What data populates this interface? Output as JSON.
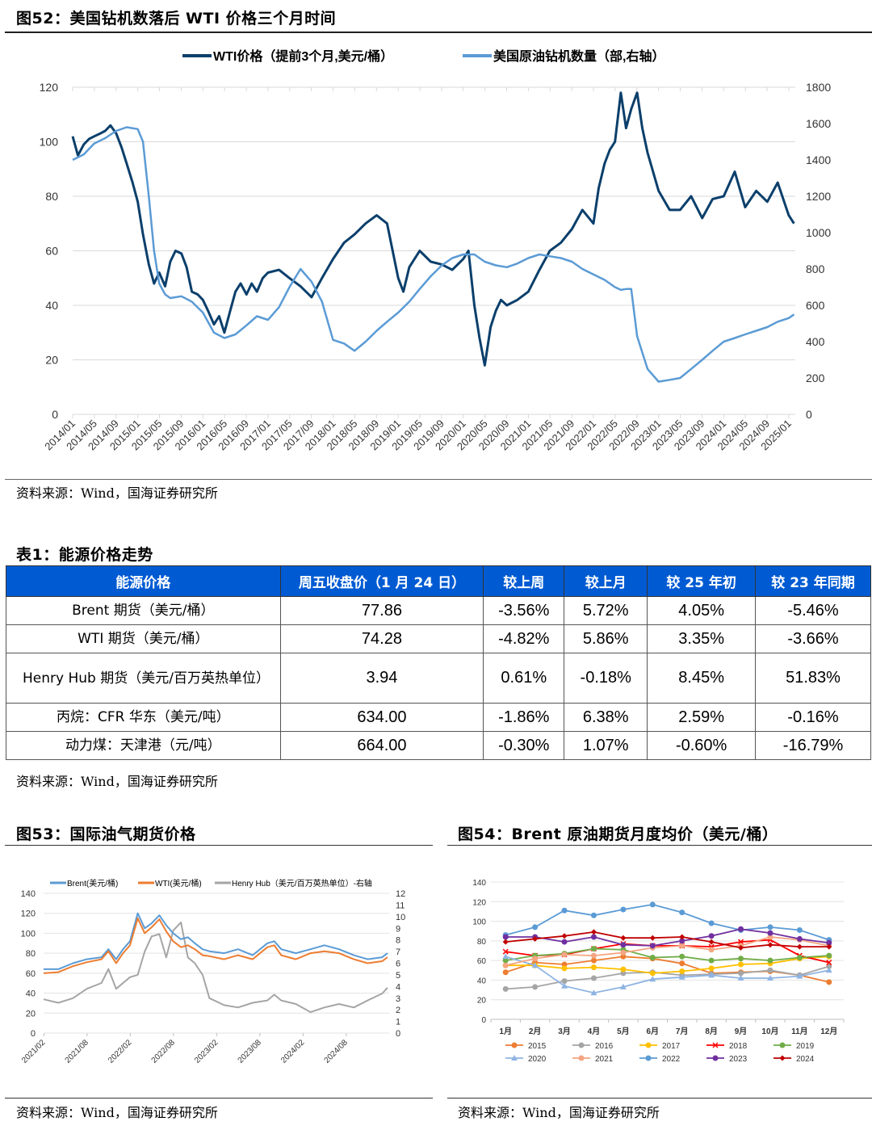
{
  "fig52": {
    "title": "图52：美国钻机数落后 WTI 价格三个月时间",
    "source": "资料来源：Wind，国海证券研究所",
    "chart_data": {
      "type": "line",
      "title": "美国钻机数落后 WTI 价格三个月时间",
      "legend": [
        "WTI价格（提前3个月,美元/桶）",
        "美国原油钻机数量（部,右轴）"
      ],
      "legend_position": "top",
      "colors": [
        "#0B3F6B",
        "#5B9BD5"
      ],
      "x_ticks": [
        "2014/01",
        "2014/05",
        "2014/09",
        "2015/01",
        "2015/05",
        "2015/09",
        "2016/01",
        "2016/05",
        "2016/09",
        "2017/01",
        "2017/05",
        "2017/09",
        "2018/01",
        "2018/05",
        "2018/09",
        "2019/01",
        "2019/05",
        "2019/09",
        "2020/01",
        "2020/05",
        "2020/09",
        "2021/01",
        "2021/05",
        "2021/09",
        "2022/01",
        "2022/05",
        "2022/09",
        "2023/01",
        "2023/05",
        "2023/09",
        "2024/01",
        "2024/05",
        "2024/09",
        "2025/01"
      ],
      "y_left": {
        "ticks": [
          0,
          20,
          40,
          60,
          80,
          100,
          120
        ],
        "range": [
          0,
          120
        ]
      },
      "y_right": {
        "ticks": [
          0,
          200,
          400,
          600,
          800,
          1000,
          1200,
          1400,
          1600,
          1800
        ],
        "range": [
          0,
          1800
        ]
      },
      "grid": true,
      "series": [
        {
          "name": "WTI价格（提前3个月,美元/桶）",
          "axis": "left",
          "x": [
            2014.0,
            2014.08,
            2014.17,
            2014.25,
            2014.33,
            2014.42,
            2014.5,
            2014.58,
            2014.67,
            2014.75,
            2014.83,
            2014.92,
            2015.0,
            2015.08,
            2015.17,
            2015.25,
            2015.33,
            2015.42,
            2015.5,
            2015.58,
            2015.67,
            2015.75,
            2015.83,
            2015.92,
            2016.0,
            2016.08,
            2016.17,
            2016.25,
            2016.33,
            2016.42,
            2016.5,
            2016.58,
            2016.67,
            2016.75,
            2016.83,
            2016.92,
            2017.0,
            2017.17,
            2017.33,
            2017.5,
            2017.67,
            2017.83,
            2018.0,
            2018.17,
            2018.33,
            2018.5,
            2018.67,
            2018.83,
            2019.0,
            2019.08,
            2019.17,
            2019.33,
            2019.5,
            2019.67,
            2019.83,
            2020.0,
            2020.08,
            2020.17,
            2020.25,
            2020.33,
            2020.42,
            2020.5,
            2020.58,
            2020.67,
            2020.83,
            2021.0,
            2021.17,
            2021.33,
            2021.5,
            2021.67,
            2021.83,
            2022.0,
            2022.08,
            2022.17,
            2022.25,
            2022.33,
            2022.42,
            2022.5,
            2022.58,
            2022.67,
            2022.75,
            2022.83,
            2023.0,
            2023.17,
            2023.33,
            2023.5,
            2023.67,
            2023.83,
            2024.0,
            2024.17,
            2024.33,
            2024.5,
            2024.67,
            2024.83,
            2025.0,
            2025.08
          ],
          "values": [
            102,
            95,
            99,
            101,
            102,
            103,
            104,
            106,
            103,
            98,
            92,
            85,
            78,
            66,
            55,
            48,
            52,
            47,
            56,
            60,
            59,
            54,
            45,
            44,
            42,
            38,
            33,
            36,
            30,
            38,
            45,
            48,
            44,
            48,
            45,
            50,
            52,
            53,
            50,
            47,
            43,
            50,
            57,
            63,
            66,
            70,
            73,
            70,
            50,
            45,
            54,
            60,
            56,
            55,
            53,
            57,
            60,
            40,
            28,
            18,
            32,
            38,
            42,
            40,
            42,
            45,
            53,
            60,
            63,
            68,
            75,
            70,
            83,
            92,
            97,
            100,
            118,
            105,
            112,
            118,
            105,
            96,
            82,
            75,
            75,
            80,
            72,
            79,
            80,
            89,
            76,
            82,
            78,
            85,
            73,
            70
          ],
          "ylim": [
            0,
            120
          ]
        },
        {
          "name": "美国原油钻机数量（部,右轴）",
          "axis": "right",
          "x": [
            2014.0,
            2014.17,
            2014.33,
            2014.5,
            2014.67,
            2014.83,
            2015.0,
            2015.08,
            2015.17,
            2015.25,
            2015.33,
            2015.42,
            2015.5,
            2015.67,
            2015.83,
            2016.0,
            2016.17,
            2016.33,
            2016.5,
            2016.67,
            2016.83,
            2017.0,
            2017.17,
            2017.33,
            2017.5,
            2017.67,
            2017.83,
            2018.0,
            2018.17,
            2018.33,
            2018.5,
            2018.67,
            2018.83,
            2019.0,
            2019.17,
            2019.33,
            2019.5,
            2019.67,
            2019.83,
            2020.0,
            2020.17,
            2020.25,
            2020.33,
            2020.5,
            2020.67,
            2020.83,
            2021.0,
            2021.17,
            2021.33,
            2021.5,
            2021.67,
            2021.83,
            2022.0,
            2022.17,
            2022.33,
            2022.42,
            2022.5,
            2022.58,
            2022.67,
            2022.83,
            2023.0,
            2023.17,
            2023.33,
            2023.5,
            2023.67,
            2023.83,
            2024.0,
            2024.17,
            2024.33,
            2024.5,
            2024.67,
            2024.83,
            2025.0,
            2025.08
          ],
          "values": [
            1400,
            1430,
            1490,
            1520,
            1560,
            1580,
            1570,
            1500,
            1200,
            900,
            720,
            660,
            640,
            650,
            620,
            560,
            450,
            420,
            440,
            490,
            540,
            520,
            590,
            700,
            800,
            730,
            620,
            410,
            390,
            350,
            400,
            460,
            510,
            560,
            620,
            690,
            760,
            820,
            860,
            880,
            880,
            860,
            840,
            820,
            810,
            830,
            860,
            880,
            870,
            860,
            840,
            800,
            770,
            740,
            700,
            685,
            690,
            690,
            430,
            250,
            180,
            190,
            200,
            250,
            300,
            350,
            400,
            420,
            440,
            460,
            480,
            510,
            530,
            550
          ],
          "ylim": [
            0,
            1800
          ]
        }
      ]
    }
  },
  "table1": {
    "title": "表1：能源价格走势",
    "header_color": "#005BD3",
    "headers": [
      "能源价格",
      "周五收盘价（1 月 24 日）",
      "较上周",
      "较上月",
      "较 25 年初",
      "较 23 年同期"
    ],
    "rows": [
      {
        "name": "Brent 期货（美元/桶）",
        "close": "77.86",
        "wow": "-3.56%",
        "mom": "5.72%",
        "ytd": "4.05%",
        "yoy": "-5.46%"
      },
      {
        "name": "WTI 期货（美元/桶）",
        "close": "74.28",
        "wow": "-4.82%",
        "mom": "5.86%",
        "ytd": "3.35%",
        "yoy": "-3.66%"
      },
      {
        "name": "Henry Hub 期货（美元/百万英热单位）",
        "close": "3.94",
        "wow": "0.61%",
        "mom": "-0.18%",
        "ytd": "8.45%",
        "yoy": "51.83%"
      },
      {
        "name": "丙烷：CFR 华东（美元/吨）",
        "close": "634.00",
        "wow": "-1.86%",
        "mom": "6.38%",
        "ytd": "2.59%",
        "yoy": "-0.16%"
      },
      {
        "name": "动力煤：天津港（元/吨）",
        "close": "664.00",
        "wow": "-0.30%",
        "mom": "1.07%",
        "ytd": "-0.60%",
        "yoy": "-16.79%"
      }
    ],
    "source": "资料来源：Wind，国海证券研究所"
  },
  "fig53": {
    "title": "图53：国际油气期货价格",
    "source": "资料来源：Wind，国海证券研究所",
    "chart_data": {
      "type": "line",
      "title": "国际油气期货价格",
      "legend": [
        "Brent(美元/桶)",
        "WTI(美元/桶)",
        "Henry Hub（美元/百万英热单位）-右轴"
      ],
      "legend_position": "top",
      "colors": [
        "#5B9BD5",
        "#ED7D31",
        "#A5A5A5"
      ],
      "x_ticks": [
        "2021/02",
        "2021/08",
        "2022/02",
        "2022/08",
        "2023/02",
        "2023/08",
        "2024/02",
        "2024/08"
      ],
      "y_left": {
        "ticks": [
          0,
          20,
          40,
          60,
          80,
          100,
          120,
          140
        ],
        "range": [
          0,
          140
        ]
      },
      "y_right": {
        "ticks": [
          0,
          1,
          2,
          3,
          4,
          5,
          6,
          7,
          8,
          9,
          10,
          11,
          12
        ],
        "range": [
          0,
          12
        ]
      },
      "grid": true,
      "x": [
        2021.08,
        2021.25,
        2021.42,
        2021.58,
        2021.75,
        2021.83,
        2021.92,
        2022.0,
        2022.08,
        2022.17,
        2022.25,
        2022.33,
        2022.42,
        2022.5,
        2022.58,
        2022.67,
        2022.75,
        2022.83,
        2022.92,
        2023.0,
        2023.17,
        2023.33,
        2023.5,
        2023.67,
        2023.75,
        2023.83,
        2024.0,
        2024.17,
        2024.33,
        2024.5,
        2024.67,
        2024.83,
        2025.0,
        2025.06
      ],
      "series": [
        {
          "name": "Brent(美元/桶)",
          "axis": "left",
          "values": [
            64,
            64,
            70,
            74,
            76,
            84,
            74,
            84,
            92,
            120,
            105,
            110,
            118,
            108,
            100,
            94,
            96,
            90,
            84,
            82,
            80,
            84,
            78,
            90,
            92,
            84,
            80,
            84,
            88,
            84,
            78,
            74,
            76,
            80
          ]
        },
        {
          "name": "WTI(美元/桶)",
          "axis": "left",
          "values": [
            60,
            61,
            67,
            71,
            74,
            82,
            70,
            80,
            88,
            115,
            100,
            106,
            114,
            102,
            92,
            86,
            88,
            84,
            78,
            77,
            74,
            78,
            74,
            86,
            88,
            78,
            74,
            80,
            82,
            80,
            74,
            70,
            72,
            76
          ]
        },
        {
          "name": "Henry Hub（美元/百万英热单位）-右轴",
          "axis": "right",
          "values": [
            2.9,
            2.6,
            3.0,
            3.8,
            4.3,
            5.5,
            3.8,
            4.3,
            4.8,
            5.0,
            7.0,
            8.3,
            8.5,
            6.5,
            8.8,
            9.5,
            6.5,
            6.0,
            5.0,
            3.0,
            2.4,
            2.2,
            2.6,
            2.8,
            3.3,
            2.8,
            2.5,
            1.8,
            2.2,
            2.5,
            2.2,
            2.8,
            3.4,
            3.9
          ]
        }
      ]
    }
  },
  "fig54": {
    "title": "图54：Brent 原油期货月度均价（美元/桶）",
    "source": "资料来源：Wind，国海证券研究所",
    "chart_data": {
      "type": "line",
      "title": "Brent 原油期货月度均价（美元/桶）",
      "categories": [
        "1月",
        "2月",
        "3月",
        "4月",
        "5月",
        "6月",
        "7月",
        "8月",
        "9月",
        "10月",
        "11月",
        "12月"
      ],
      "ylabel": "",
      "ylim": [
        0,
        140
      ],
      "y_ticks": [
        0,
        20,
        40,
        60,
        80,
        100,
        120,
        140
      ],
      "grid": true,
      "legend_position": "bottom",
      "series": [
        {
          "name": "2015",
          "color": "#ED7D31",
          "marker": "circle",
          "values": [
            48,
            58,
            56,
            60,
            64,
            62,
            57,
            47,
            48,
            49,
            45,
            38
          ]
        },
        {
          "name": "2016",
          "color": "#A5A5A5",
          "marker": "circle",
          "values": [
            31,
            33,
            39,
            42,
            47,
            48,
            45,
            46,
            47,
            50,
            45,
            54
          ]
        },
        {
          "name": "2017",
          "color": "#FFC000",
          "marker": "circle",
          "values": [
            55,
            55,
            52,
            53,
            51,
            47,
            49,
            52,
            56,
            57,
            62,
            64
          ]
        },
        {
          "name": "2018",
          "color": "#FF0000",
          "marker": "x",
          "values": [
            69,
            65,
            66,
            72,
            77,
            75,
            75,
            74,
            79,
            81,
            65,
            58
          ]
        },
        {
          "name": "2019",
          "color": "#70AD47",
          "marker": "circle",
          "values": [
            60,
            65,
            67,
            72,
            71,
            63,
            64,
            60,
            62,
            60,
            63,
            65
          ]
        },
        {
          "name": "2020",
          "color": "#8FB4E3",
          "marker": "triangle",
          "values": [
            64,
            55,
            34,
            27,
            33,
            41,
            43,
            45,
            42,
            42,
            44,
            50
          ]
        },
        {
          "name": "2021",
          "color": "#F4A582",
          "marker": "circle",
          "values": [
            55,
            62,
            66,
            65,
            68,
            73,
            75,
            71,
            75,
            84,
            81,
            75
          ]
        },
        {
          "name": "2022",
          "color": "#5B9BD5",
          "marker": "circle",
          "values": [
            86,
            94,
            111,
            106,
            112,
            117,
            109,
            98,
            91,
            94,
            91,
            81
          ]
        },
        {
          "name": "2023",
          "color": "#7030A0",
          "marker": "circle",
          "values": [
            84,
            84,
            79,
            84,
            76,
            75,
            80,
            85,
            92,
            88,
            82,
            78
          ]
        },
        {
          "name": "2024",
          "color": "#C00000",
          "marker": "diamond",
          "values": [
            79,
            82,
            85,
            89,
            83,
            83,
            84,
            79,
            73,
            76,
            74,
            74
          ]
        }
      ]
    }
  }
}
